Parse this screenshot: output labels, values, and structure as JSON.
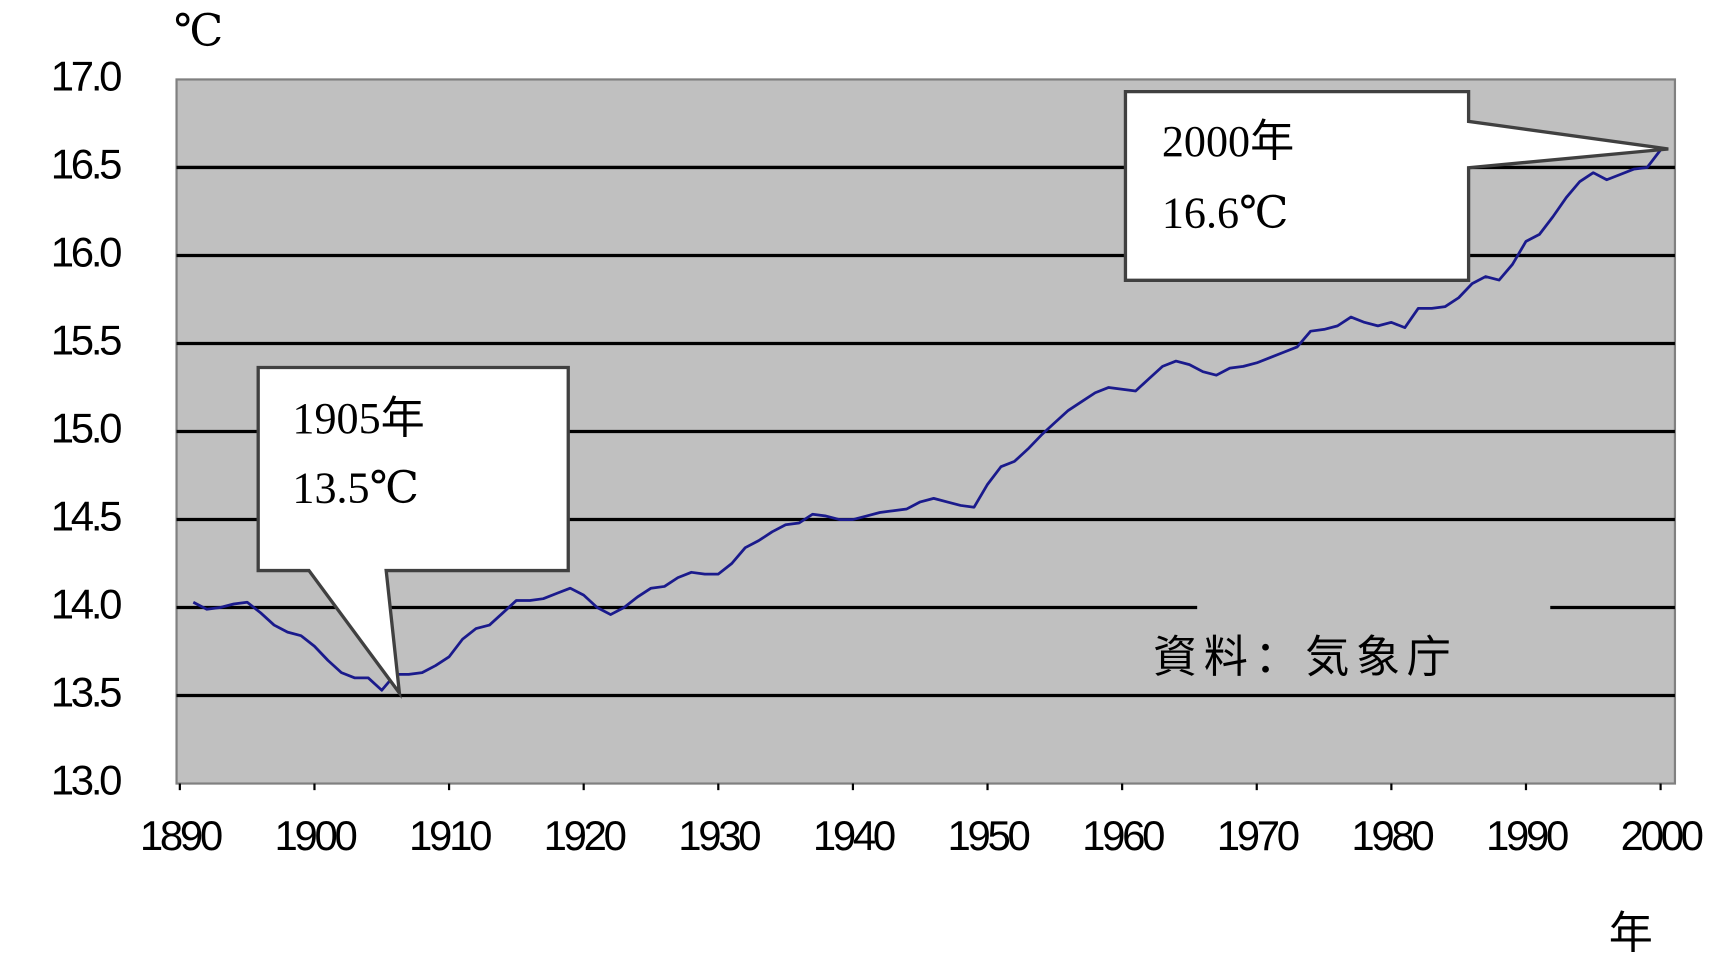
{
  "chart_data": {
    "type": "line",
    "y_unit": "℃",
    "x_unit": "年",
    "source": "資料：気象庁",
    "annotations": [
      {
        "year": "1905年",
        "temp": "13.5℃"
      },
      {
        "year": "2000年",
        "temp": "16.6℃"
      }
    ],
    "xlim": [
      1890,
      2001
    ],
    "xticks": [
      1890,
      1900,
      1910,
      1920,
      1930,
      1940,
      1950,
      1960,
      1970,
      1980,
      1990,
      2000
    ],
    "ylim": [
      13,
      17
    ],
    "yticks": [
      {
        "value": 13,
        "label": "13.0"
      },
      {
        "value": 13.5,
        "label": "13.5"
      },
      {
        "value": 14,
        "label": "14.0"
      },
      {
        "value": 14.5,
        "label": "14.5"
      },
      {
        "value": 15,
        "label": "15.0"
      },
      {
        "value": 15.5,
        "label": "15.5"
      },
      {
        "value": 16,
        "label": "16.0"
      },
      {
        "value": 16.5,
        "label": "16.5"
      },
      {
        "value": 17,
        "label": "17.0"
      }
    ],
    "grid": true,
    "series": [
      {
        "color": "#1a1a8c",
        "x": [
          1891,
          1892,
          1893,
          1894,
          1895,
          1896,
          1897,
          1898,
          1899,
          1900,
          1901,
          1902,
          1903,
          1904,
          1905,
          1906,
          1907,
          1908,
          1909,
          1910,
          1911,
          1912,
          1913,
          1914,
          1915,
          1916,
          1917,
          1918,
          1919,
          1920,
          1921,
          1922,
          1923,
          1924,
          1925,
          1926,
          1927,
          1928,
          1929,
          1930,
          1931,
          1932,
          1933,
          1934,
          1935,
          1936,
          1937,
          1938,
          1939,
          1940,
          1941,
          1942,
          1943,
          1944,
          1945,
          1946,
          1947,
          1948,
          1949,
          1950,
          1951,
          1952,
          1953,
          1954,
          1955,
          1956,
          1957,
          1958,
          1959,
          1960,
          1961,
          1962,
          1963,
          1964,
          1965,
          1966,
          1967,
          1968,
          1969,
          1970,
          1971,
          1972,
          1973,
          1974,
          1975,
          1976,
          1977,
          1978,
          1979,
          1980,
          1981,
          1982,
          1983,
          1984,
          1985,
          1986,
          1987,
          1988,
          1989,
          1990,
          1991,
          1992,
          1993,
          1994,
          1995,
          1996,
          1997,
          1998,
          1999,
          2000
        ],
        "values": [
          14.03,
          13.99,
          14.0,
          14.02,
          14.03,
          13.97,
          13.9,
          13.86,
          13.84,
          13.78,
          13.7,
          13.63,
          13.6,
          13.6,
          13.53,
          13.62,
          13.62,
          13.63,
          13.67,
          13.72,
          13.82,
          13.88,
          13.9,
          13.97,
          14.04,
          14.04,
          14.05,
          14.08,
          14.11,
          14.07,
          14.0,
          13.96,
          14.0,
          14.06,
          14.11,
          14.12,
          14.17,
          14.2,
          14.19,
          14.19,
          14.25,
          14.34,
          14.38,
          14.43,
          14.47,
          14.48,
          14.53,
          14.52,
          14.5,
          14.5,
          14.52,
          14.54,
          14.55,
          14.56,
          14.6,
          14.62,
          14.6,
          14.58,
          14.57,
          14.7,
          14.8,
          14.83,
          14.9,
          14.98,
          15.05,
          15.12,
          15.17,
          15.22,
          15.25,
          15.24,
          15.23,
          15.3,
          15.37,
          15.4,
          15.38,
          15.34,
          15.32,
          15.36,
          15.37,
          15.39,
          15.42,
          15.45,
          15.48,
          15.57,
          15.58,
          15.6,
          15.65,
          15.62,
          15.6,
          15.62,
          15.59,
          15.7,
          15.7,
          15.71,
          15.76,
          15.84,
          15.88,
          15.86,
          15.95,
          16.08,
          16.12,
          16.22,
          16.33,
          16.42,
          16.47,
          16.43,
          16.46,
          16.49,
          16.5,
          16.6
        ]
      }
    ]
  }
}
